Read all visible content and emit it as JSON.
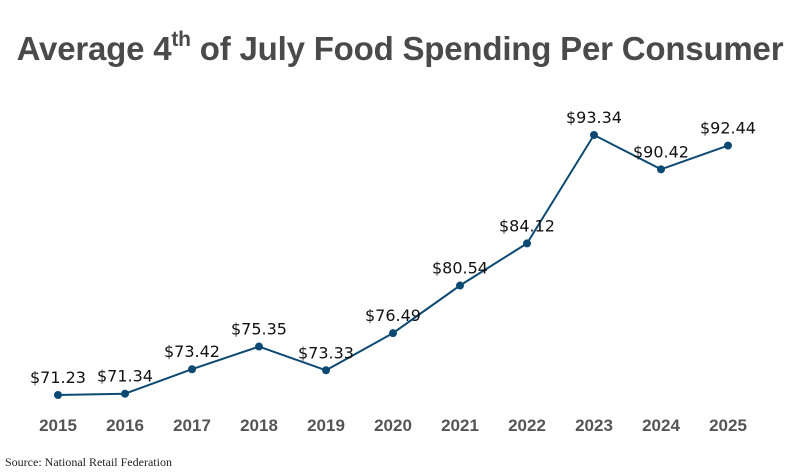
{
  "title": {
    "prefix": "Average 4",
    "superscript": "th",
    "suffix": " of July Food Spending Per Consumer"
  },
  "source": "Source: National Retail Federation",
  "colors": {
    "line": "#0d4a73",
    "marker": "#0d4a73",
    "title": "#4a4a4a"
  },
  "chart_data": {
    "type": "line",
    "title": "Average 4th of July Food Spending Per Consumer",
    "xlabel": "",
    "ylabel": "",
    "categories": [
      "2015",
      "2016",
      "2017",
      "2018",
      "2019",
      "2020",
      "2021",
      "2022",
      "2023",
      "2024",
      "2025"
    ],
    "series": [
      {
        "values": [
          71.23,
          71.34,
          73.42,
          75.35,
          73.33,
          76.49,
          80.54,
          84.12,
          93.34,
          90.42,
          92.44
        ],
        "labels": [
          "$71.23",
          "$71.34",
          "$73.42",
          "$75.35",
          "$73.33",
          "$76.49",
          "$80.54",
          "$84.12",
          "$93.34",
          "$90.42",
          "$92.44"
        ]
      }
    ],
    "grid": false,
    "legend": "none"
  }
}
